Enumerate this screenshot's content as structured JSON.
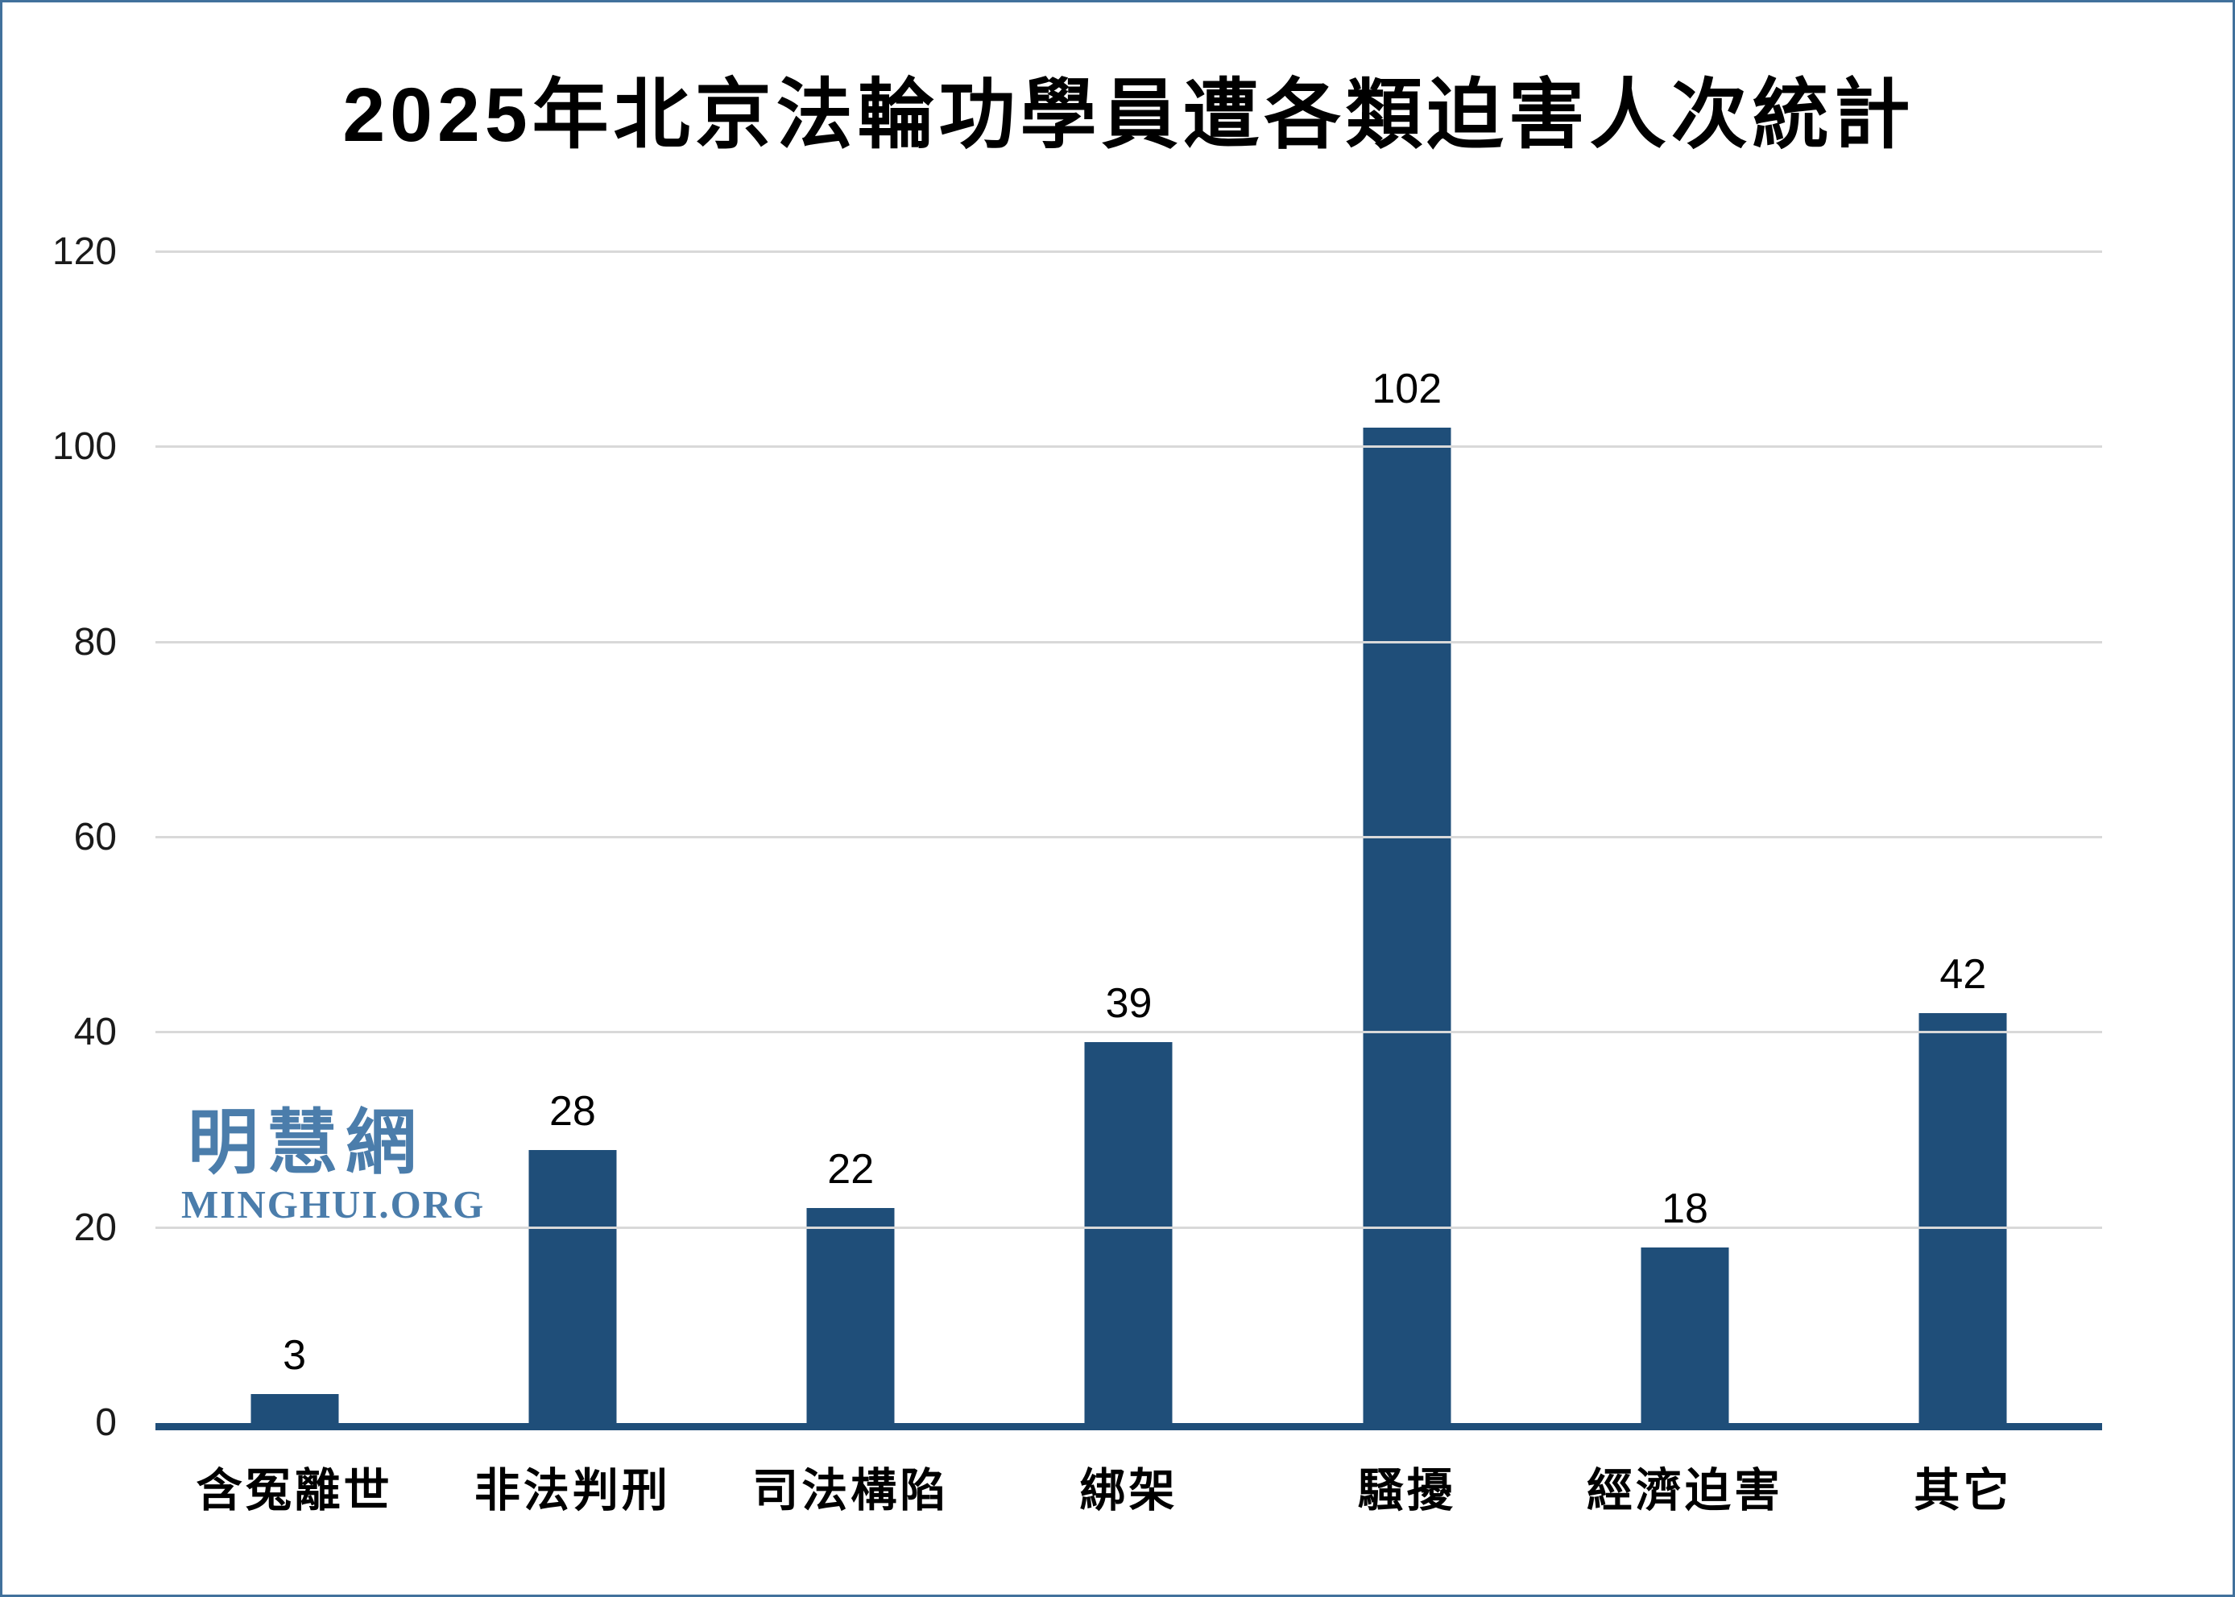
{
  "page": {
    "frame_color": "#41719C",
    "background_color": "#FFFFFF"
  },
  "chart_data": {
    "type": "bar",
    "title": "2025年北京法輪功學員遭各類迫害人次統計",
    "categories": [
      "含冤離世",
      "非法判刑",
      "司法構陷",
      "綁架",
      "騷擾",
      "經濟迫害",
      "其它"
    ],
    "values": [
      3,
      28,
      22,
      39,
      102,
      18,
      42
    ],
    "value_labels": [
      "3",
      "28",
      "22",
      "39",
      "102",
      "18",
      "42"
    ],
    "xlabel": "",
    "ylabel": "",
    "ylim": [
      0,
      120
    ],
    "yticks": [
      0,
      20,
      40,
      60,
      80,
      100,
      120
    ],
    "grid": true,
    "legend": "none",
    "bar_color": "#1F4E79",
    "axis_line_color": "#1F4E79",
    "gridline_color": "#D9D9D9",
    "tick_label_color": "#1a1a1a",
    "value_label_color": "#000000",
    "title_color": "#000000"
  },
  "watermark": {
    "cjk": "明慧網",
    "latin": "MINGHUI.ORG",
    "color": "#4B7DAB"
  }
}
